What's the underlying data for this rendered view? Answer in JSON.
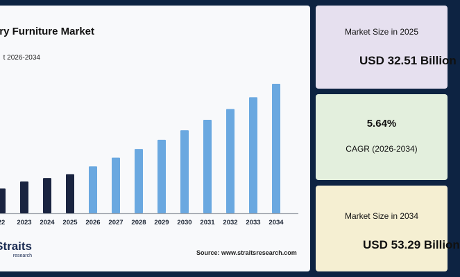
{
  "chart": {
    "title": "ry Furniture Market",
    "subtitle": "t 2026-2034",
    "source": "Source: www.straitsresearch.com"
  },
  "brand": {
    "name": "Straits",
    "sub": "research"
  },
  "cards": [
    {
      "label": "Market Size in 2025",
      "value": "USD 32.51 Billion"
    },
    {
      "value": "5.64%",
      "label": "CAGR (2026-2034)"
    },
    {
      "label": "Market Size in 2034",
      "value": "USD 53.29 Billion"
    }
  ],
  "chart_data": {
    "type": "bar",
    "categories": [
      "22",
      "2023",
      "2024",
      "2025",
      "2026",
      "2027",
      "2028",
      "2029",
      "2030",
      "2031",
      "2032",
      "2033",
      "2034"
    ],
    "values": [
      29.2,
      30.8,
      31.6,
      32.51,
      34.3,
      36.3,
      38.3,
      40.4,
      42.6,
      45.0,
      47.5,
      50.2,
      53.29
    ],
    "ylim": [
      23.5,
      55
    ],
    "colors": {
      "historical": "#1a2440",
      "forecast": "#6aa8e0"
    },
    "historical_until": "2025",
    "grid": false,
    "legend": "none"
  }
}
